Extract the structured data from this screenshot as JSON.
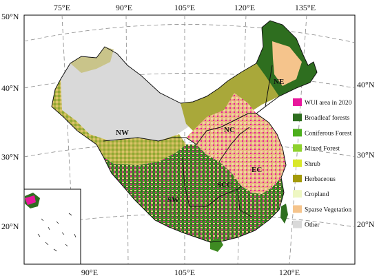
{
  "map": {
    "top_longitude_labels": [
      "75°E",
      "90°E",
      "105°E",
      "120°E",
      "135°E"
    ],
    "bottom_longitude_labels": [
      "90°E",
      "105°E",
      "120°E"
    ],
    "left_latitude_labels": [
      "50°N",
      "40°N",
      "30°N",
      "20°N"
    ],
    "right_latitude_labels": [
      "40°N",
      "30°N",
      "20°N"
    ],
    "regions": [
      "NE",
      "NW",
      "NC",
      "EC",
      "SCC",
      "SW"
    ]
  },
  "legend": {
    "items": [
      {
        "label": "WUI area in 2020",
        "color": "#e8179c"
      },
      {
        "label": "Broadleaf forests",
        "color": "#2e6e1f"
      },
      {
        "label": "Coniferous Forest",
        "color": "#4caf1c"
      },
      {
        "label": "Mixed Forest",
        "color": "#8ed12e"
      },
      {
        "label": "Shrub",
        "color": "#d9e82a"
      },
      {
        "label": "Herbaceous",
        "color": "#a39a0a"
      },
      {
        "label": "Cropland",
        "color": "#eef7c2"
      },
      {
        "label": "Sparse Vegetation",
        "color": "#f5c48c"
      },
      {
        "label": "Other",
        "color": "#d9d9d9"
      }
    ]
  }
}
